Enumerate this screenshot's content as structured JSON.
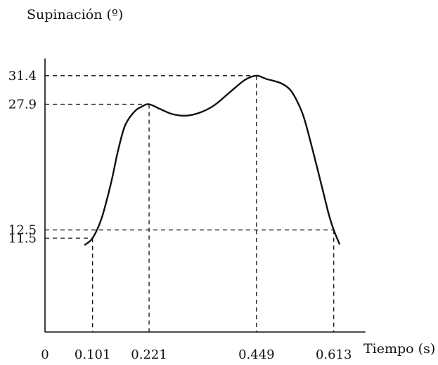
{
  "chart_data": {
    "type": "line",
    "ylabel": "Supinación (º)",
    "xlabel": "Tiempo (s)",
    "x_ticks": [
      {
        "value": 0,
        "label": "0"
      },
      {
        "value": 0.101,
        "label": "0.101"
      },
      {
        "value": 0.221,
        "label": "0.221"
      },
      {
        "value": 0.449,
        "label": "0.449"
      },
      {
        "value": 0.613,
        "label": "0.613"
      }
    ],
    "y_ticks": [
      {
        "value": 11.5,
        "label": "11.5"
      },
      {
        "value": 12.5,
        "label": "12.5"
      },
      {
        "value": 27.9,
        "label": "27.9"
      },
      {
        "value": 31.4,
        "label": "31.4"
      }
    ],
    "series": [
      {
        "x": [
          0.085,
          0.101,
          0.12,
          0.14,
          0.155,
          0.17,
          0.19,
          0.205,
          0.221,
          0.245,
          0.27,
          0.3,
          0.33,
          0.36,
          0.395,
          0.425,
          0.449,
          0.47,
          0.5,
          0.52,
          0.535,
          0.55,
          0.57,
          0.59,
          0.603,
          0.613,
          0.625
        ],
        "y": [
          10.7,
          11.5,
          13.9,
          18.2,
          22.2,
          25.3,
          27.0,
          27.6,
          27.9,
          27.3,
          26.7,
          26.5,
          26.9,
          27.8,
          29.5,
          30.9,
          31.4,
          31.0,
          30.5,
          29.7,
          28.3,
          26.2,
          21.9,
          17.3,
          14.3,
          12.5,
          10.8
        ]
      }
    ],
    "guides": [
      {
        "x": 0.101,
        "y": 11.5
      },
      {
        "x": 0.221,
        "y": 27.9
      },
      {
        "x": 0.449,
        "y": 31.4
      },
      {
        "x": 0.613,
        "y": 12.5
      }
    ],
    "xlim": [
      0,
      0.7
    ],
    "ylim": [
      0,
      33.5
    ],
    "grid": false,
    "legend": "none"
  }
}
